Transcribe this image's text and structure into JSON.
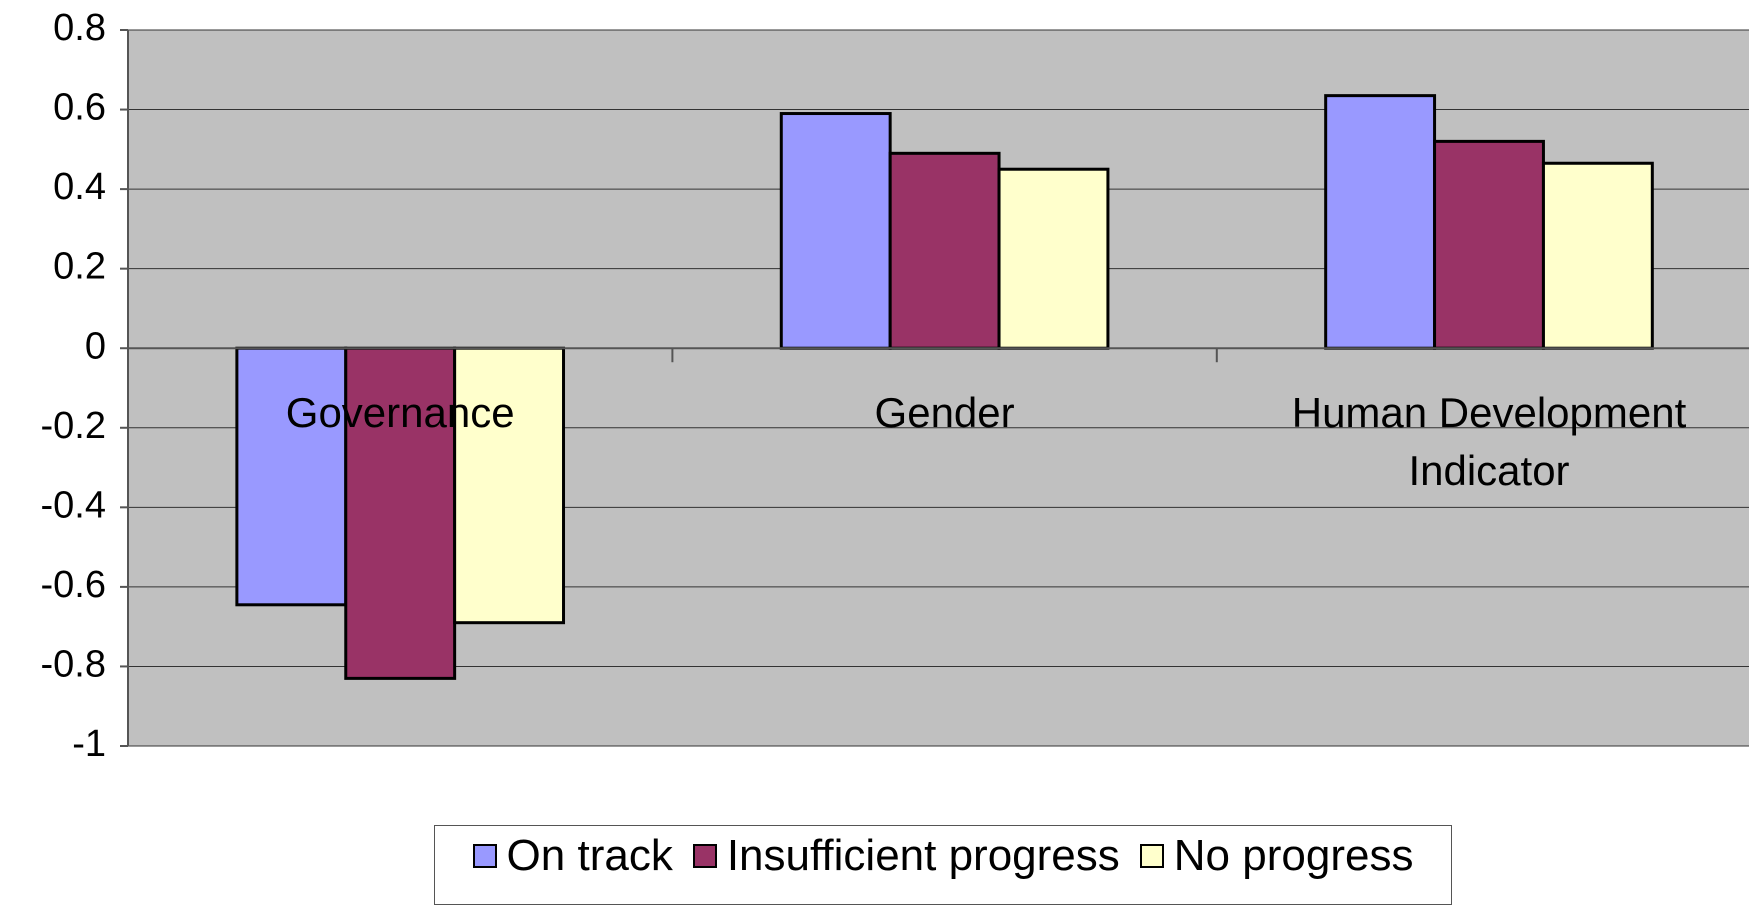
{
  "chart_data": {
    "type": "bar",
    "categories": [
      "Governance",
      "Gender",
      "Human Development Indicator"
    ],
    "series": [
      {
        "name": "On track",
        "color": "#9999ff",
        "values": [
          -0.645,
          0.59,
          0.635
        ]
      },
      {
        "name": "Insufficient progress",
        "color": "#993366",
        "values": [
          -0.83,
          0.49,
          0.52
        ]
      },
      {
        "name": "No progress",
        "color": "#ffffcc",
        "values": [
          -0.69,
          0.45,
          0.465
        ]
      }
    ],
    "ylim": [
      -1,
      0.8
    ],
    "yticks": [
      -1,
      -0.8,
      -0.6,
      -0.4,
      -0.2,
      0,
      0.2,
      0.4,
      0.6,
      0.8
    ],
    "grid": true,
    "plot_background": "#c0c0c0",
    "legend": "bottom"
  }
}
